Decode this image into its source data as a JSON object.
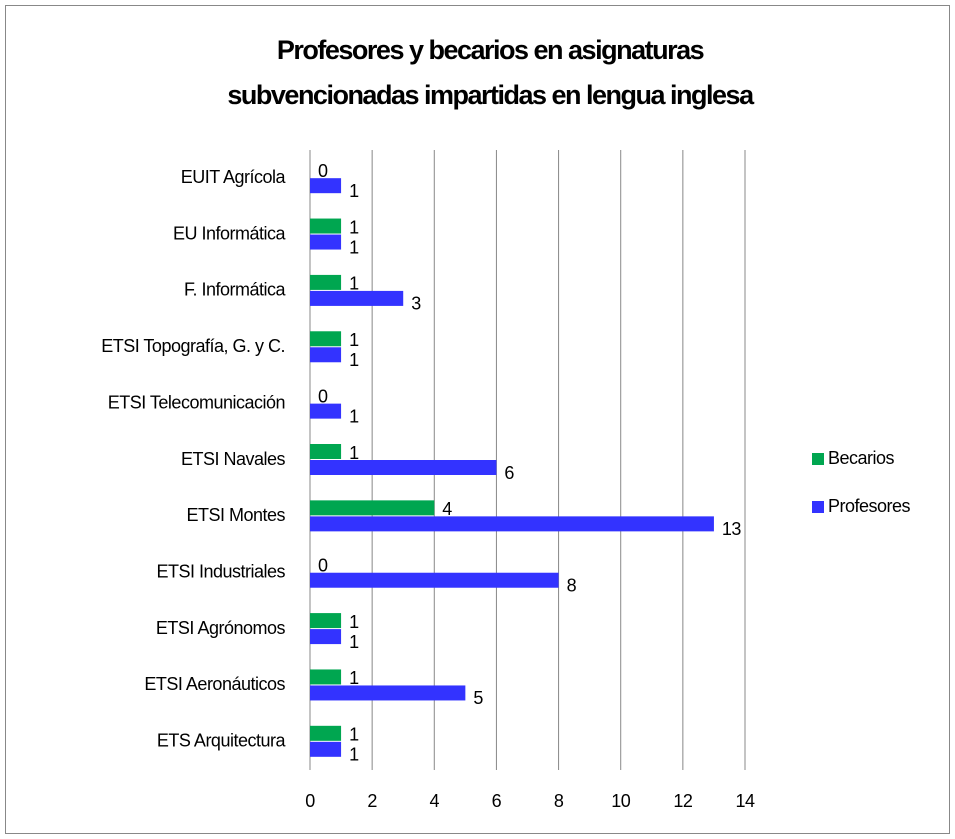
{
  "chart_data": {
    "type": "barh",
    "title": [
      "Profesores y becarios en asignaturas",
      "subvencionadas impartidas en lengua inglesa"
    ],
    "categories": [
      "EUIT Agrícola",
      "EU Informática",
      "F. Informática",
      "ETSI Topografía, G. y C.",
      "ETSI Telecomunicación",
      "ETSI Navales",
      "ETSI Montes",
      "ETSI Industriales",
      "ETSI Agrónomos",
      "ETSI Aeronáuticos",
      "ETS Arquitectura"
    ],
    "series": [
      {
        "name": "Becarios",
        "color": "#00a650",
        "values": [
          0,
          1,
          1,
          1,
          0,
          1,
          4,
          0,
          1,
          1,
          1
        ]
      },
      {
        "name": "Profesores",
        "color": "#3333ff",
        "values": [
          1,
          1,
          3,
          1,
          1,
          6,
          13,
          8,
          1,
          5,
          1
        ]
      }
    ],
    "xlim": [
      0,
      14
    ],
    "xticks": [
      0,
      2,
      4,
      6,
      8,
      10,
      12,
      14
    ],
    "grid": true,
    "legend": "right"
  }
}
